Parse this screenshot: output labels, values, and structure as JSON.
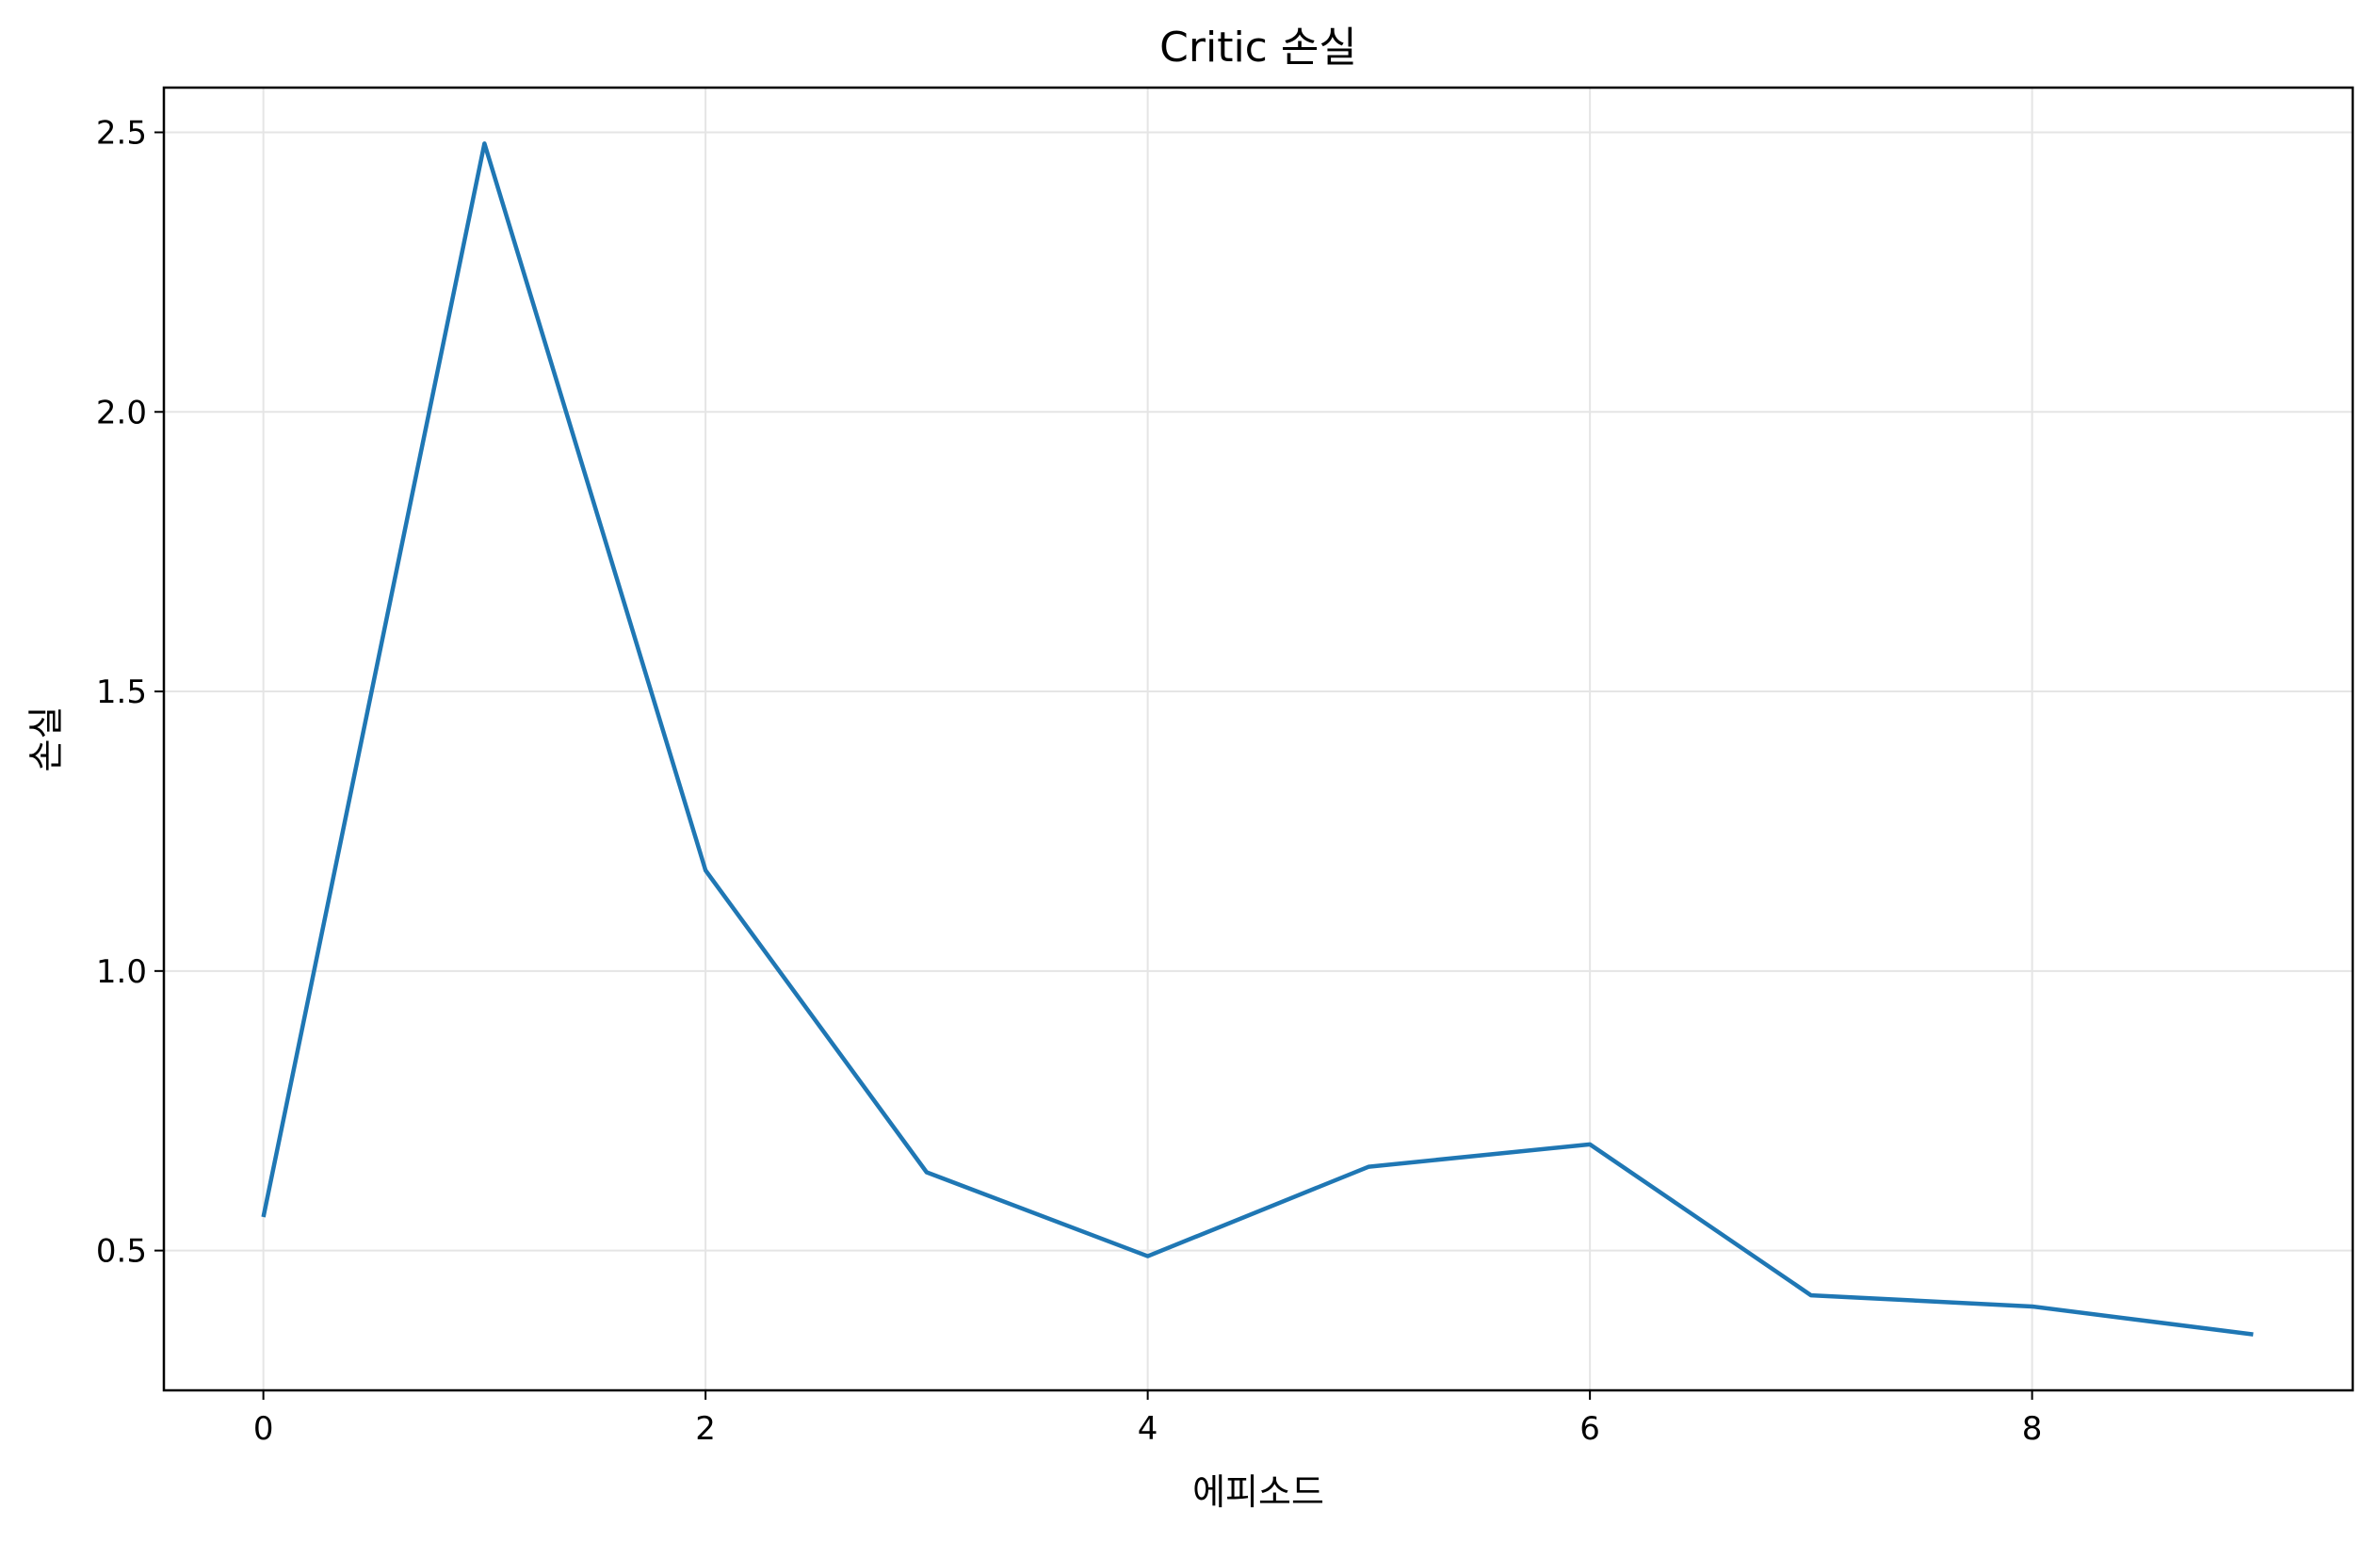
{
  "chart_data": {
    "type": "line",
    "title": "Critic 손실",
    "xlabel": "에피소드",
    "ylabel": "손실",
    "x": [
      0,
      1,
      2,
      3,
      4,
      5,
      6,
      7,
      8,
      9
    ],
    "series": [
      {
        "values": [
          0.56,
          2.48,
          1.18,
          0.64,
          0.49,
          0.65,
          0.69,
          0.42,
          0.4,
          0.35
        ],
        "color": "#1f77b4"
      }
    ],
    "xlim": [
      -0.45,
      9.45
    ],
    "ylim": [
      0.25,
      2.58
    ],
    "xticks": [
      0,
      2,
      4,
      6,
      8
    ],
    "yticks": [
      0.5,
      1.0,
      1.5,
      2.0,
      2.5
    ],
    "xtick_labels": [
      "0",
      "2",
      "4",
      "6",
      "8"
    ],
    "ytick_labels": [
      "0.5",
      "1.0",
      "1.5",
      "2.0",
      "2.5"
    ],
    "grid": true,
    "grid_color": "#e5e5e5",
    "frame_color": "#000000"
  }
}
